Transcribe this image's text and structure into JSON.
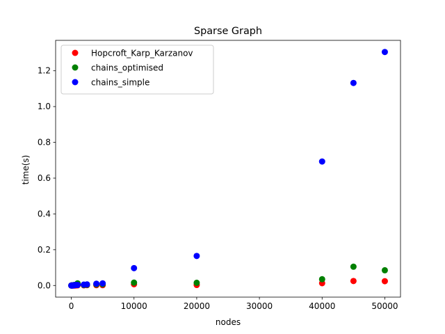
{
  "chart_data": {
    "type": "scatter",
    "title": "Sparse Graph",
    "xlabel": "nodes",
    "ylabel": "time(s)",
    "xlim": [
      -2500,
      52500
    ],
    "ylim": [
      -0.065,
      1.37
    ],
    "xticks": [
      0,
      10000,
      20000,
      30000,
      40000,
      50000
    ],
    "xtick_labels": [
      "0",
      "10000",
      "20000",
      "30000",
      "40000",
      "50000"
    ],
    "yticks": [
      0.0,
      0.2,
      0.4,
      0.6,
      0.8,
      1.0,
      1.2
    ],
    "ytick_labels": [
      "0.0",
      "0.2",
      "0.4",
      "0.6",
      "0.8",
      "1.0",
      "1.2"
    ],
    "grid": false,
    "legend_position": "upper-left",
    "series": [
      {
        "name": "Hopcroft_Karp_Karzanov",
        "color": "#ff0000",
        "points": [
          [
            0,
            0.0
          ],
          [
            100,
            0.0
          ],
          [
            200,
            0.0
          ],
          [
            300,
            0.0
          ],
          [
            400,
            0.0
          ],
          [
            500,
            0.0
          ],
          [
            700,
            0.0
          ],
          [
            1000,
            0.001
          ],
          [
            2000,
            0.001
          ],
          [
            2500,
            0.002
          ],
          [
            4000,
            0.002
          ],
          [
            5000,
            0.002
          ],
          [
            10000,
            0.007
          ],
          [
            20000,
            0.003
          ],
          [
            40000,
            0.013
          ],
          [
            45000,
            0.025
          ],
          [
            50000,
            0.024
          ]
        ]
      },
      {
        "name": "chains_optimised",
        "color": "#008000",
        "points": [
          [
            0,
            0.0
          ],
          [
            100,
            0.0
          ],
          [
            200,
            0.001
          ],
          [
            300,
            0.001
          ],
          [
            400,
            0.002
          ],
          [
            500,
            0.003
          ],
          [
            700,
            0.004
          ],
          [
            1000,
            0.012
          ],
          [
            2000,
            0.003
          ],
          [
            2500,
            0.004
          ],
          [
            4000,
            0.006
          ],
          [
            5000,
            0.007
          ],
          [
            10000,
            0.016
          ],
          [
            20000,
            0.015
          ],
          [
            40000,
            0.035
          ],
          [
            45000,
            0.105
          ],
          [
            50000,
            0.085
          ]
        ]
      },
      {
        "name": "chains_simple",
        "color": "#0000ff",
        "points": [
          [
            0,
            0.0
          ],
          [
            100,
            0.0
          ],
          [
            200,
            0.0
          ],
          [
            300,
            0.001
          ],
          [
            400,
            0.001
          ],
          [
            500,
            0.002
          ],
          [
            700,
            0.003
          ],
          [
            1000,
            0.003
          ],
          [
            2000,
            0.005
          ],
          [
            2500,
            0.006
          ],
          [
            4000,
            0.01
          ],
          [
            5000,
            0.012
          ],
          [
            10000,
            0.097
          ],
          [
            20000,
            0.165
          ],
          [
            40000,
            0.693
          ],
          [
            45000,
            1.132
          ],
          [
            50000,
            1.305
          ]
        ]
      }
    ]
  }
}
